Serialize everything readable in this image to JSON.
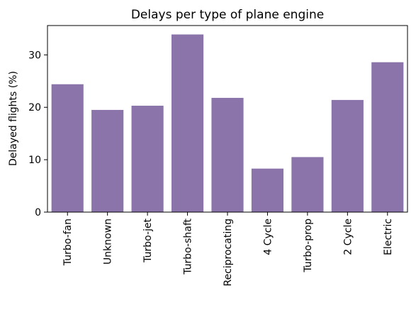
{
  "chart_data": {
    "type": "bar",
    "title": "Delays per type of plane engine",
    "xlabel": "",
    "ylabel": "Delayed flights (%)",
    "categories": [
      "Turbo-fan",
      "Unknown",
      "Turbo-jet",
      "Turbo-shaft",
      "Reciprocating",
      "4 Cycle",
      "Turbo-prop",
      "2 Cycle",
      "Electric"
    ],
    "values": [
      24.4,
      19.5,
      20.3,
      33.9,
      21.8,
      8.3,
      10.5,
      21.4,
      28.6
    ],
    "ylim": [
      0,
      35.6
    ],
    "yticks": [
      0,
      10,
      20,
      30
    ],
    "grid": false,
    "bar_color": "#8a74aa"
  }
}
